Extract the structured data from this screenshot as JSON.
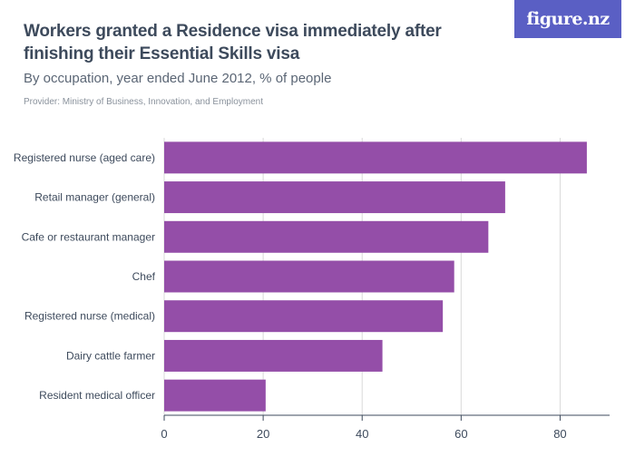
{
  "header": {
    "title": "Workers granted a Residence visa immediately after finishing their Essential Skills visa",
    "subtitle": "By occupation, year ended June 2012, % of people",
    "provider": "Provider: Ministry of Business, Innovation, and Employment",
    "logo": "figure.nz"
  },
  "chart_data": {
    "type": "bar",
    "orientation": "horizontal",
    "categories": [
      "Registered nurse (aged care)",
      "Retail manager (general)",
      "Cafe or restaurant manager",
      "Chef",
      "Registered nurse (medical)",
      "Dairy cattle farmer",
      "Resident medical officer"
    ],
    "values": [
      85.4,
      68.9,
      65.5,
      58.6,
      56.3,
      44.1,
      20.5
    ],
    "xlim": [
      0,
      90
    ],
    "xticks": [
      0,
      20,
      40,
      60,
      80
    ],
    "xlabel": "",
    "ylabel": "",
    "grid": true,
    "bar_color": "#944ea8"
  }
}
